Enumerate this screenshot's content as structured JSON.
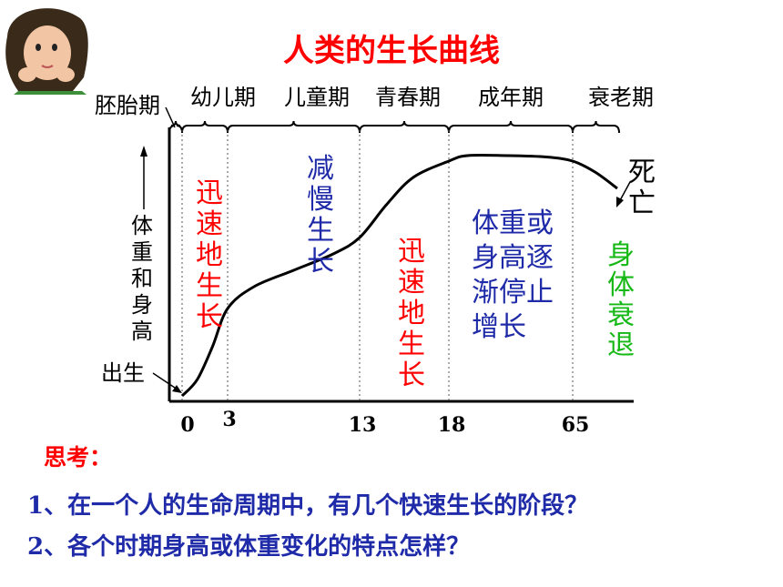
{
  "title": "人类的生长曲线",
  "chart_data": {
    "type": "line",
    "title": "人类的生长曲线",
    "ylabel": "体重和身高",
    "stages": [
      "胚胎期",
      "幼儿期",
      "儿童期",
      "青春期",
      "成年期",
      "衰老期"
    ],
    "x_ticks": [
      0,
      3,
      13,
      18,
      65
    ],
    "x_tick_labels": [
      "0",
      "3",
      "13",
      "18",
      "65"
    ],
    "curve_points": [
      {
        "x": 0,
        "y": 2
      },
      {
        "x": 1,
        "y": 8
      },
      {
        "x": 2,
        "y": 20
      },
      {
        "x": 3,
        "y": 34
      },
      {
        "x": 5,
        "y": 42
      },
      {
        "x": 8,
        "y": 48
      },
      {
        "x": 11,
        "y": 54
      },
      {
        "x": 13,
        "y": 60
      },
      {
        "x": 14.5,
        "y": 72
      },
      {
        "x": 16,
        "y": 82
      },
      {
        "x": 18,
        "y": 88
      },
      {
        "x": 25,
        "y": 90
      },
      {
        "x": 40,
        "y": 90
      },
      {
        "x": 55,
        "y": 89.5
      },
      {
        "x": 65,
        "y": 88
      },
      {
        "x": 70,
        "y": 84
      },
      {
        "x": 75,
        "y": 78
      }
    ],
    "annotations": {
      "birth": "出生",
      "death": "死亡",
      "rapid1": "迅速地生长",
      "slow": "减慢生长",
      "rapid2": "迅速地生长",
      "stop": [
        "体重或",
        "身高逐",
        "渐停止",
        "增长"
      ],
      "decline": "身体衰退"
    },
    "colors": {
      "red": "#ff0000",
      "blue": "#1e2aa8",
      "green": "#16b816",
      "black": "#000000"
    }
  },
  "questions": {
    "heading": "思考：",
    "q1": "1、在一个人的生命周期中，有几个快速生长的阶段？",
    "q2": "2、各个时期身高或体重变化的特点怎样？"
  }
}
